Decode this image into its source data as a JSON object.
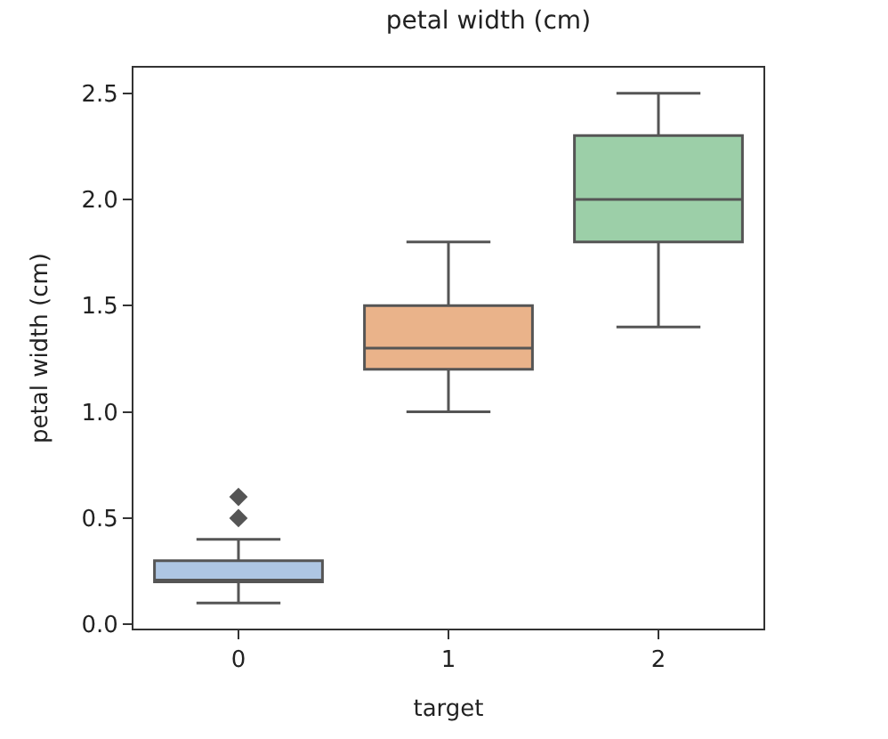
{
  "chart_data": {
    "type": "box",
    "title": "petal width (cm)",
    "xlabel": "target",
    "ylabel": "petal width (cm)",
    "categories": [
      "0",
      "1",
      "2"
    ],
    "boxes": [
      {
        "low": 0.1,
        "q1": 0.2,
        "median": 0.2,
        "q3": 0.3,
        "high": 0.4,
        "outliers": [
          0.5,
          0.6
        ]
      },
      {
        "low": 1.0,
        "q1": 1.2,
        "median": 1.3,
        "q3": 1.5,
        "high": 1.8
      },
      {
        "low": 1.4,
        "q1": 1.8,
        "median": 2.0,
        "q3": 2.3,
        "high": 2.5
      }
    ],
    "colors": [
      "#aec6e3",
      "#eab38a",
      "#9ccfa8"
    ],
    "ylim": [
      -0.02,
      2.62
    ],
    "yticks": [
      {
        "value": 0,
        "label": "0.0"
      },
      {
        "value": 0.5,
        "label": "0.5"
      },
      {
        "value": 1.0,
        "label": "1.0"
      },
      {
        "value": 1.5,
        "label": "1.5"
      },
      {
        "value": 2.0,
        "label": "2.0"
      },
      {
        "value": 2.5,
        "label": "2.5"
      }
    ]
  }
}
